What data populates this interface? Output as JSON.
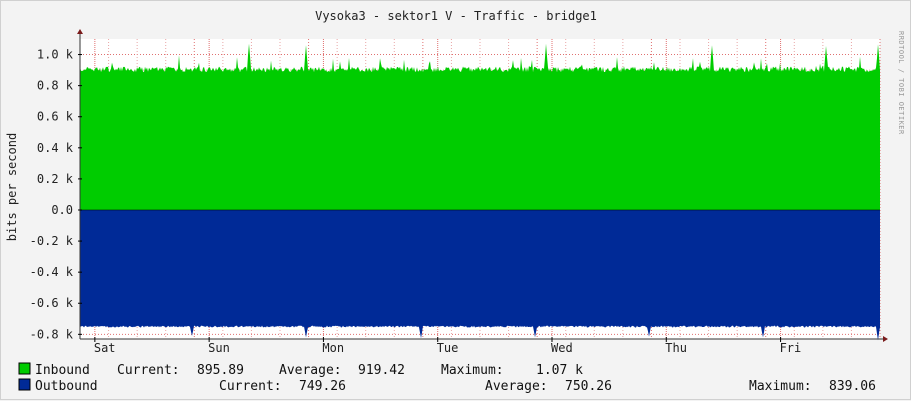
{
  "chart_data": {
    "type": "area",
    "title": "Vysoka3 - sektor1 V - Traffic - bridge1",
    "ylabel": "bits per second",
    "watermark": "RRDTOOL / TOBI OETIKER",
    "y_ticks": [
      "1.0 k",
      "0.8 k",
      "0.6 k",
      "0.4 k",
      "0.2 k",
      "0.0",
      "-0.2 k",
      "-0.4 k",
      "-0.6 k",
      "-0.8 k"
    ],
    "y_tick_values": [
      1000,
      800,
      600,
      400,
      200,
      0,
      -200,
      -400,
      -600,
      -800
    ],
    "ylim": [
      -830,
      1100
    ],
    "x_ticks": [
      "Sat",
      "Sun",
      "Mon",
      "Tue",
      "Wed",
      "Thu",
      "Fri"
    ],
    "x_range_days": [
      0,
      7
    ],
    "grid": true,
    "colors": {
      "inbound": "#00cc00",
      "outbound": "#002a97",
      "grid_minor": "#e8a6a6",
      "grid_major": "#e07070",
      "axis": "#333333",
      "canvas": "#ffffff",
      "background": "#f3f3f3"
    },
    "series": [
      {
        "name": "Inbound",
        "sign": 1,
        "baseline": 905,
        "noise": 18,
        "spikes": [
          {
            "day": 1.35,
            "value": 1070
          },
          {
            "day": 1.85,
            "value": 1060
          },
          {
            "day": 3.95,
            "value": 1070
          },
          {
            "day": 5.4,
            "value": 1060
          },
          {
            "day": 6.4,
            "value": 1055
          },
          {
            "day": 6.85,
            "value": 1065
          }
        ],
        "current": "895.89",
        "average": "919.42",
        "maximum": "1.07 k"
      },
      {
        "name": "Outbound",
        "sign": -1,
        "baseline": 750,
        "noise": 6,
        "spikes": [
          {
            "day": 0.85,
            "value": 810
          },
          {
            "day": 1.85,
            "value": 820
          },
          {
            "day": 2.85,
            "value": 825
          },
          {
            "day": 3.85,
            "value": 820
          },
          {
            "day": 4.85,
            "value": 815
          },
          {
            "day": 5.85,
            "value": 820
          },
          {
            "day": 6.85,
            "value": 839.06
          }
        ],
        "current": "749.26",
        "average": "750.26",
        "maximum": "839.06"
      }
    ]
  },
  "legend": {
    "inbound": {
      "label": "Inbound",
      "current_label": "Current:",
      "current": "895.89",
      "average_label": "Average:",
      "average": "919.42",
      "maximum_label": "Maximum:",
      "maximum": "1.07 k"
    },
    "outbound": {
      "label": "Outbound",
      "current_label": "Current:",
      "current": "749.26",
      "average_label": "Average:",
      "average": "750.26",
      "maximum_label": "Maximum:",
      "maximum": "839.06"
    }
  }
}
